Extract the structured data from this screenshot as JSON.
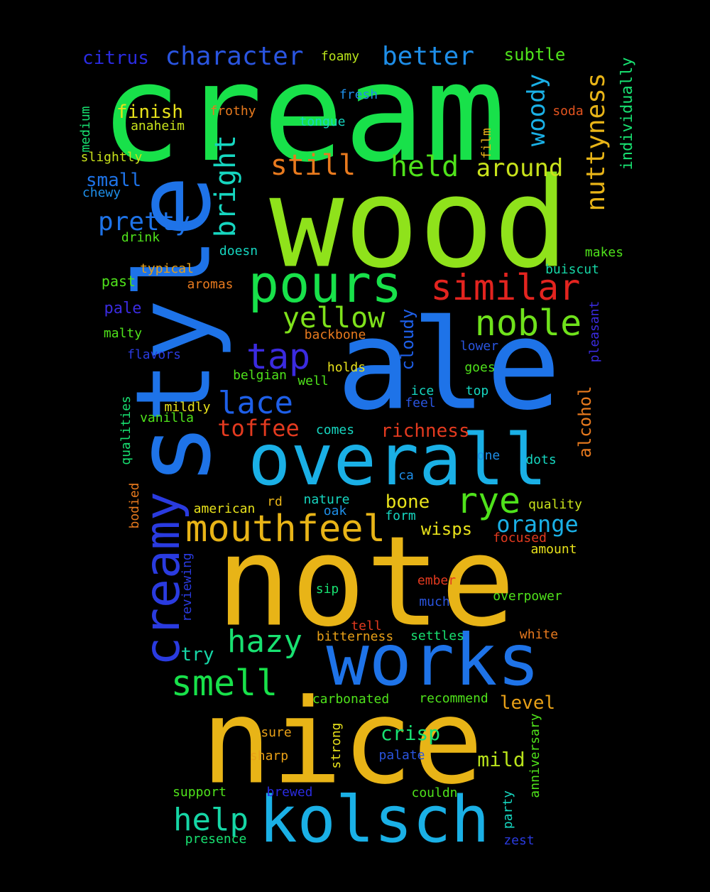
{
  "words": [
    {
      "text": "cream",
      "color": "#18e14a"
    },
    {
      "text": "wood",
      "color": "#8fe21b"
    },
    {
      "text": "ale",
      "color": "#1e73e8"
    },
    {
      "text": "note",
      "color": "#e8b417"
    },
    {
      "text": "style",
      "color": "#1e73e8"
    },
    {
      "text": "nice",
      "color": "#e8b417"
    },
    {
      "text": "overall",
      "color": "#1ab0e6"
    },
    {
      "text": "works",
      "color": "#1e73e8"
    },
    {
      "text": "kolsch",
      "color": "#1ab0e6"
    },
    {
      "text": "pours",
      "color": "#18e14a"
    },
    {
      "text": "creamy",
      "color": "#2a3be0"
    },
    {
      "text": "mouthfeel",
      "color": "#e8b417"
    },
    {
      "text": "similar",
      "color": "#e3241f"
    },
    {
      "text": "noble",
      "color": "#6fe21b"
    },
    {
      "text": "smell",
      "color": "#18e14a"
    },
    {
      "text": "hazy",
      "color": "#18e171"
    },
    {
      "text": "help",
      "color": "#16d6a6"
    },
    {
      "text": "rye",
      "color": "#4fe21b"
    },
    {
      "text": "tap",
      "color": "#3b2be0"
    },
    {
      "text": "yellow",
      "color": "#7fe21b"
    },
    {
      "text": "lace",
      "color": "#1e5fe8"
    },
    {
      "text": "character",
      "color": "#2a55e0"
    },
    {
      "text": "better",
      "color": "#1e8ee8"
    },
    {
      "text": "held",
      "color": "#4fe21b"
    },
    {
      "text": "around",
      "color": "#c8e21b"
    },
    {
      "text": "still",
      "color": "#e87a1e"
    },
    {
      "text": "nuttyness",
      "color": "#e8b417"
    },
    {
      "text": "woody",
      "color": "#1ab0e6"
    },
    {
      "text": "bright",
      "color": "#16d6c0"
    },
    {
      "text": "pretty",
      "color": "#1e73e8"
    },
    {
      "text": "toffee",
      "color": "#e33a1f"
    },
    {
      "text": "richness",
      "color": "#e33a1f"
    },
    {
      "text": "orange",
      "color": "#1ab0e6"
    },
    {
      "text": "crisp",
      "color": "#18e171"
    },
    {
      "text": "mild",
      "color": "#b8e21b"
    },
    {
      "text": "citrus",
      "color": "#2a2be0"
    },
    {
      "text": "finish",
      "color": "#e8e21b"
    },
    {
      "text": "small",
      "color": "#1e73e8"
    },
    {
      "text": "subtle",
      "color": "#4fe21b"
    },
    {
      "text": "alcohol",
      "color": "#e87a1e"
    },
    {
      "text": "cloudy",
      "color": "#1e5fe8"
    },
    {
      "text": "bone",
      "color": "#e8e21b"
    },
    {
      "text": "wisps",
      "color": "#e8e21b"
    },
    {
      "text": "level",
      "color": "#e8a017"
    },
    {
      "text": "try",
      "color": "#16d6a6"
    },
    {
      "text": "individually",
      "color": "#18e171"
    },
    {
      "text": "foamy",
      "color": "#b8e21b"
    },
    {
      "text": "fresh",
      "color": "#1e8ee8"
    },
    {
      "text": "frothy",
      "color": "#e87a1e"
    },
    {
      "text": "soda",
      "color": "#e3541f"
    },
    {
      "text": "anaheim",
      "color": "#c8e21b"
    },
    {
      "text": "tongue",
      "color": "#16d6c0"
    },
    {
      "text": "medium",
      "color": "#18e171"
    },
    {
      "text": "slightly",
      "color": "#c8e21b"
    },
    {
      "text": "chewy",
      "color": "#1e8ee8"
    },
    {
      "text": "film",
      "color": "#e8b417"
    },
    {
      "text": "drink",
      "color": "#4fe21b"
    },
    {
      "text": "doesn",
      "color": "#16d6c0"
    },
    {
      "text": "makes",
      "color": "#4fe21b"
    },
    {
      "text": "typical",
      "color": "#e8a017"
    },
    {
      "text": "aromas",
      "color": "#e87a1e"
    },
    {
      "text": "buiscut",
      "color": "#16d6a6"
    },
    {
      "text": "past",
      "color": "#4fe21b"
    },
    {
      "text": "pale",
      "color": "#3b2be0"
    },
    {
      "text": "pleasant",
      "color": "#3b2be0"
    },
    {
      "text": "backbone",
      "color": "#e87a1e"
    },
    {
      "text": "malty",
      "color": "#4fe21b"
    },
    {
      "text": "lower",
      "color": "#2a55e0"
    },
    {
      "text": "flavors",
      "color": "#2a3be0"
    },
    {
      "text": "holds",
      "color": "#e8e21b"
    },
    {
      "text": "belgian",
      "color": "#4fe21b"
    },
    {
      "text": "well",
      "color": "#4fe21b"
    },
    {
      "text": "goes",
      "color": "#4fe21b"
    },
    {
      "text": "ice",
      "color": "#16d6c0"
    },
    {
      "text": "top",
      "color": "#16d6c0"
    },
    {
      "text": "feel",
      "color": "#2a55e0"
    },
    {
      "text": "qualities",
      "color": "#18e171"
    },
    {
      "text": "mildly",
      "color": "#e8e21b"
    },
    {
      "text": "vanilla",
      "color": "#4fe21b"
    },
    {
      "text": "comes",
      "color": "#16d6c0"
    },
    {
      "text": "one",
      "color": "#1e8ee8"
    },
    {
      "text": "dots",
      "color": "#16d6c0"
    },
    {
      "text": "ca",
      "color": "#1e8ee8"
    },
    {
      "text": "bodied",
      "color": "#e87a1e"
    },
    {
      "text": "rd",
      "color": "#e8b417"
    },
    {
      "text": "nature",
      "color": "#16d6c0"
    },
    {
      "text": "american",
      "color": "#e8e21b"
    },
    {
      "text": "oak",
      "color": "#1e8ee8"
    },
    {
      "text": "form",
      "color": "#16d6c0"
    },
    {
      "text": "quality",
      "color": "#c8e21b"
    },
    {
      "text": "focused",
      "color": "#e33a1f"
    },
    {
      "text": "amount",
      "color": "#e8e21b"
    },
    {
      "text": "reviewing",
      "color": "#2a3be0"
    },
    {
      "text": "ember",
      "color": "#e33a1f"
    },
    {
      "text": "sip",
      "color": "#18e171"
    },
    {
      "text": "much",
      "color": "#2a55e0"
    },
    {
      "text": "overpower",
      "color": "#4fe21b"
    },
    {
      "text": "tell",
      "color": "#e33a1f"
    },
    {
      "text": "bitterness",
      "color": "#e8a017"
    },
    {
      "text": "settles",
      "color": "#18e171"
    },
    {
      "text": "white",
      "color": "#e87a1e"
    },
    {
      "text": "carbonated",
      "color": "#4fe21b"
    },
    {
      "text": "recommend",
      "color": "#4fe21b"
    },
    {
      "text": "sure",
      "color": "#e8a017"
    },
    {
      "text": "strong",
      "color": "#e8e21b"
    },
    {
      "text": "anniversary",
      "color": "#4fe21b"
    },
    {
      "text": "sharp",
      "color": "#e8a017"
    },
    {
      "text": "palate",
      "color": "#2a55e0"
    },
    {
      "text": "support",
      "color": "#4fe21b"
    },
    {
      "text": "brewed",
      "color": "#2a2be0"
    },
    {
      "text": "couldn",
      "color": "#4fe21b"
    },
    {
      "text": "party",
      "color": "#16d6c0"
    },
    {
      "text": "presence",
      "color": "#18e171"
    },
    {
      "text": "zest",
      "color": "#2a3be0"
    }
  ]
}
